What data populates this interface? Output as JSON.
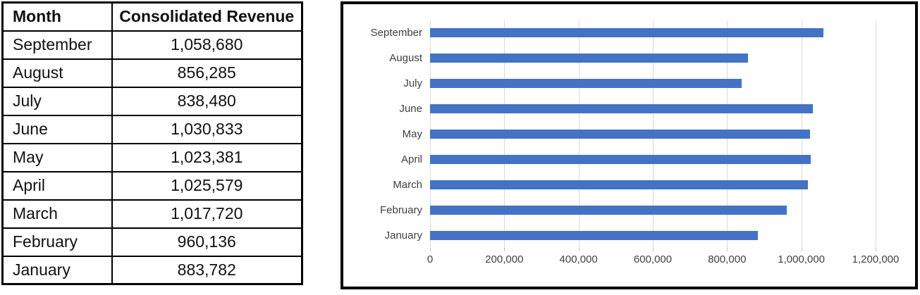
{
  "table": {
    "columns": [
      "Month",
      "Consolidated Revenue"
    ],
    "rows": [
      {
        "month": "September",
        "revenue": "1,058,680"
      },
      {
        "month": "August",
        "revenue": "856,285"
      },
      {
        "month": "July",
        "revenue": "838,480"
      },
      {
        "month": "June",
        "revenue": "1,030,833"
      },
      {
        "month": "May",
        "revenue": "1,023,381"
      },
      {
        "month": "April",
        "revenue": "1,025,579"
      },
      {
        "month": "March",
        "revenue": "1,017,720"
      },
      {
        "month": "February",
        "revenue": "960,136"
      },
      {
        "month": "January",
        "revenue": "883,782"
      }
    ]
  },
  "chart_data": {
    "type": "bar",
    "orientation": "horizontal",
    "title": "",
    "xlabel": "",
    "ylabel": "",
    "categories": [
      "September",
      "August",
      "July",
      "June",
      "May",
      "April",
      "March",
      "February",
      "January"
    ],
    "values": [
      1058680,
      856285,
      838480,
      1030833,
      1023381,
      1025579,
      1017720,
      960136,
      883782
    ],
    "xlim": [
      0,
      1200000
    ],
    "xticks": [
      0,
      200000,
      400000,
      600000,
      800000,
      1000000,
      1200000
    ],
    "xtick_labels": [
      "0",
      "200,000",
      "400,000",
      "600,000",
      "800,000",
      "1,000,000",
      "1,200,000"
    ],
    "grid": true,
    "legend": false,
    "bar_color": "#4472C4",
    "gridline_color": "#D9D9D9",
    "axis_text_color": "#404040"
  }
}
